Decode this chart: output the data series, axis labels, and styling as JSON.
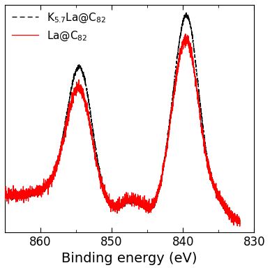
{
  "xlabel": "Binding energy (eV)",
  "xlabel_fontsize": 14,
  "line1_color": "#ff0000",
  "line2_color": "#000000",
  "xlim": [
    865,
    832
  ],
  "xticks": [
    860,
    850,
    840,
    830
  ],
  "noise_amplitude_la": 0.018,
  "noise_amplitude_k": 0.008,
  "seed": 12
}
